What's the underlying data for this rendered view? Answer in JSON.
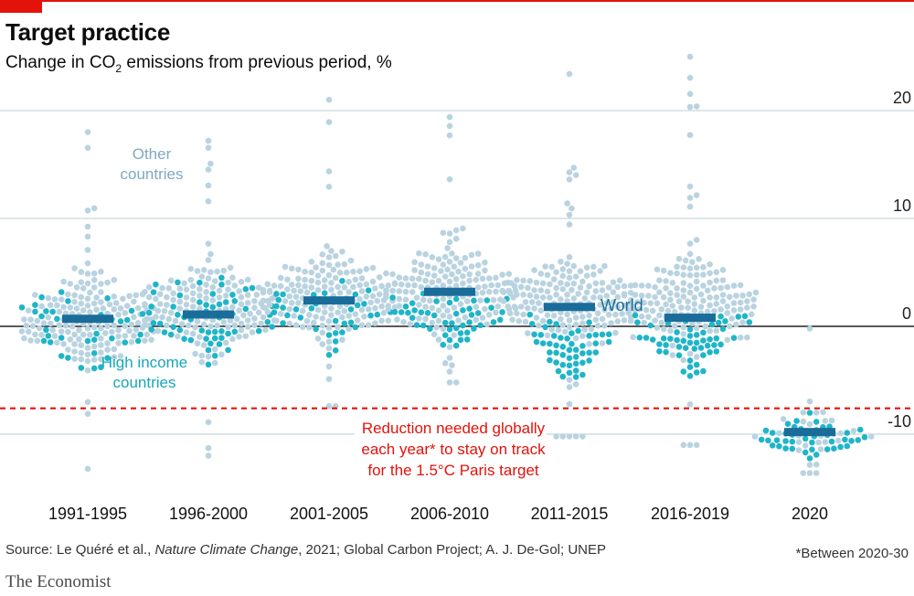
{
  "title": "Target practice",
  "subtitle": {
    "prefix": "Change in CO",
    "sub": "2",
    "suffix": " emissions from previous period, %"
  },
  "source": {
    "prefix": "Source: Le Quéré et al., ",
    "journal": "Nature Climate Change",
    "suffix": ", 2021; Global Carbon Project; A. J. De-Gol; UNEP"
  },
  "footnote": "*Between 2020-30",
  "brand": "The Economist",
  "colors": {
    "other": "#b9d3e0",
    "high_income": "#1fb5c9",
    "world": "#1a6d9a",
    "target": "#e3120b",
    "grid": "#b8ccd8",
    "zero": "#222222"
  },
  "annotations": {
    "other": [
      "Other",
      "countries"
    ],
    "high_income": [
      "High income",
      "countries"
    ],
    "world": "World",
    "target": [
      "Reduction needed globally",
      "each year* to stay on track",
      "for the 1.5°C Paris target"
    ]
  },
  "chart_data": {
    "type": "scatter",
    "subtype": "beeswarm",
    "categories": [
      "1991-1995",
      "1996-2000",
      "2001-2005",
      "2006-2010",
      "2011-2015",
      "2016-2019",
      "2020"
    ],
    "yticks": [
      -10,
      0,
      10,
      20
    ],
    "ytick_labels": [
      "-10",
      "0",
      "10",
      "20"
    ],
    "ylim": [
      -16,
      25
    ],
    "grid": true,
    "world": [
      0.7,
      1.1,
      2.4,
      3.2,
      1.8,
      0.8,
      -9.8
    ],
    "target": -7.6,
    "distributions": [
      {
        "center": 0.8,
        "spread": 4.2,
        "high_income_center": 0.2,
        "high_income_spread": 3.6,
        "min": -13.2,
        "max": 18.0
      },
      {
        "center": 1.6,
        "spread": 3.8,
        "high_income_center": 0.8,
        "high_income_spread": 3.2,
        "min": -12.0,
        "max": 17.2
      },
      {
        "center": 2.8,
        "spread": 3.6,
        "high_income_center": 1.2,
        "high_income_spread": 2.2,
        "min": -7.4,
        "max": 21.0
      },
      {
        "center": 3.4,
        "spread": 3.1,
        "high_income_center": 1.0,
        "high_income_spread": 2.0,
        "min": -5.2,
        "max": 19.4
      },
      {
        "center": 2.4,
        "spread": 3.2,
        "high_income_center": -1.8,
        "high_income_spread": 2.2,
        "min": -10.2,
        "max": 23.4
      },
      {
        "center": 2.2,
        "spread": 3.6,
        "high_income_center": -1.2,
        "high_income_spread": 2.2,
        "min": -11.0,
        "max": 25.0
      },
      {
        "center": -9.4,
        "spread": 2.0,
        "high_income_center": -10.2,
        "high_income_spread": 1.6,
        "min": -13.6,
        "max": -0.2
      }
    ]
  }
}
